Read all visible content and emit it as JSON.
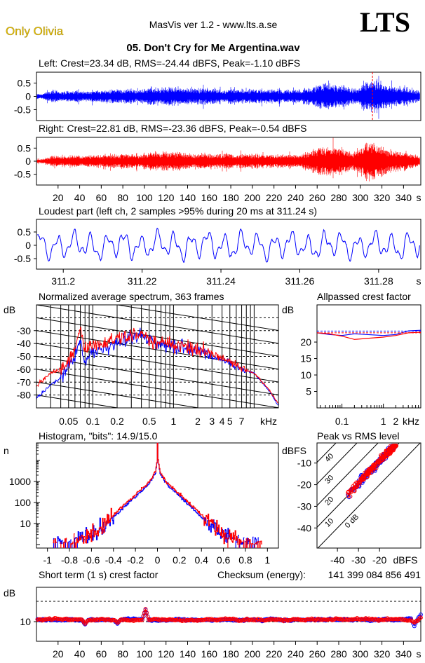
{
  "header": {
    "brand": "Only Olivia",
    "app_title": "MasVis ver 1.2 - www.lts.a.se",
    "logo": "LTS",
    "file_title": "05. Don't Cry for Me Argentina.wav"
  },
  "colors": {
    "left": "#0000ff",
    "right": "#ff0000",
    "brand": "#e8c000"
  },
  "chart_data": [
    {
      "id": "left_wave",
      "type": "area",
      "title": "Left: Crest=23.34 dB, RMS=-24.44 dBFS, Peak=-1.10 dBFS",
      "ytick_labels": [
        "0.5",
        "0",
        "-0.5"
      ],
      "yticks": [
        0.5,
        0,
        -0.5
      ],
      "xlim": [
        0,
        356
      ],
      "ylim": [
        -0.91,
        0.91
      ],
      "envelope_per_10s": [
        0.1,
        0.25,
        0.2,
        0.25,
        0.2,
        0.25,
        0.25,
        0.3,
        0.3,
        0.25,
        0.4,
        0.35,
        0.4,
        0.35,
        0.3,
        0.35,
        0.3,
        0.3,
        0.3,
        0.28,
        0.3,
        0.28,
        0.3,
        0.25,
        0.3,
        0.4,
        0.55,
        0.5,
        0.45,
        0.3,
        0.6,
        0.7,
        0.45,
        0.4,
        0.35,
        0.2
      ],
      "marker_time_s": 311.24
    },
    {
      "id": "right_wave",
      "type": "area",
      "title": "Right: Crest=22.81 dB, RMS=-23.36 dBFS, Peak=-0.54 dBFS",
      "ytick_labels": [
        "0.5",
        "0",
        "-0.5"
      ],
      "yticks": [
        0.5,
        0,
        -0.5
      ],
      "xlim": [
        0,
        356
      ],
      "ylim": [
        -0.91,
        0.91
      ],
      "envelope_per_10s": [
        0.1,
        0.22,
        0.2,
        0.25,
        0.22,
        0.28,
        0.28,
        0.3,
        0.32,
        0.28,
        0.4,
        0.38,
        0.42,
        0.38,
        0.32,
        0.36,
        0.32,
        0.32,
        0.3,
        0.3,
        0.3,
        0.3,
        0.3,
        0.28,
        0.3,
        0.45,
        0.65,
        0.6,
        0.55,
        0.35,
        0.8,
        0.85,
        0.55,
        0.45,
        0.38,
        0.2
      ],
      "xticks": [
        20,
        40,
        60,
        80,
        100,
        120,
        140,
        160,
        180,
        200,
        220,
        240,
        260,
        280,
        300,
        320,
        340
      ],
      "xtick_labels": [
        "20",
        "40",
        "60",
        "80",
        "100",
        "120",
        "140",
        "160",
        "180",
        "200",
        "220",
        "240",
        "260",
        "280",
        "300",
        "320",
        "340"
      ],
      "xunit": "s"
    },
    {
      "id": "loudest",
      "type": "line",
      "title": "Loudest part (left  ch, 2 samples >95% during 20 ms at 311.24 s)",
      "xlim": [
        311.1932,
        311.2907
      ],
      "ylim": [
        -0.89,
        0.97
      ],
      "ytick_labels": [
        "0.5",
        "0",
        "-0.5"
      ],
      "yticks": [
        0.5,
        0,
        -0.5
      ],
      "xticks": [
        311.2,
        311.22,
        311.24,
        311.26,
        311.28
      ],
      "xtick_labels": [
        "311.2",
        "311.22",
        "311.24",
        "311.26",
        "311.28"
      ],
      "xunit": "s"
    },
    {
      "id": "spectrum",
      "type": "line",
      "title": "Normalized average spectrum, 363 frames",
      "ylabel": "dB",
      "xunit": "kHz",
      "xlim": [
        0.02,
        20
      ],
      "ylim": [
        -90,
        -10
      ],
      "yticks": [
        -30,
        -40,
        -50,
        -60,
        -70,
        -80
      ],
      "ytick_labels": [
        "-30",
        "-40",
        "-50",
        "-60",
        "-70",
        "-80"
      ],
      "xticks": [
        0.05,
        0.1,
        0.2,
        0.5,
        1,
        2,
        3,
        4,
        5,
        7
      ],
      "xtick_labels": [
        "0.05",
        "0.1",
        "0.2",
        "0.5",
        "1",
        "2",
        "3",
        "4",
        "5",
        "7"
      ],
      "freq_khz": [
        0.02,
        0.03,
        0.04,
        0.05,
        0.06,
        0.07,
        0.08,
        0.1,
        0.15,
        0.2,
        0.3,
        0.4,
        0.5,
        0.7,
        1,
        1.5,
        2,
        3,
        4,
        5,
        7,
        10,
        15,
        20
      ],
      "series": [
        {
          "name": "Left",
          "values": [
            -83,
            -72,
            -66,
            -58,
            -50,
            -38,
            -55,
            -45,
            -45,
            -40,
            -35,
            -33,
            -38,
            -40,
            -42,
            -44,
            -46,
            -50,
            -52,
            -55,
            -60,
            -63,
            -76,
            -88
          ]
        },
        {
          "name": "Right",
          "values": [
            -73,
            -63,
            -60,
            -52,
            -45,
            -28,
            -45,
            -40,
            -40,
            -36,
            -33,
            -32,
            -37,
            -40,
            -41,
            -43,
            -45,
            -48,
            -51,
            -55,
            -59,
            -63,
            -75,
            -87
          ]
        }
      ]
    },
    {
      "id": "allpassed",
      "type": "line",
      "title": "Allpassed crest factor",
      "ylabel": "dB",
      "xunit": "kHz",
      "xlim": [
        0.025,
        8
      ],
      "ylim": [
        0,
        31.3
      ],
      "yticks": [
        20,
        15,
        10,
        5
      ],
      "ytick_labels": [
        "20",
        "15",
        "10",
        "5"
      ],
      "xticks": [
        0.1,
        1,
        2
      ],
      "xtick_labels": [
        "0.1",
        "1",
        "2"
      ],
      "freq_khz": [
        0.025,
        0.05,
        0.1,
        0.2,
        0.5,
        1,
        2,
        4,
        8
      ],
      "series": [
        {
          "name": "Left",
          "values": [
            22.8,
            22.3,
            22.0,
            22.5,
            22.2,
            22.0,
            22.3,
            23.4,
            23.6
          ],
          "reference": 23.34
        },
        {
          "name": "Right",
          "values": [
            22.8,
            22.5,
            21.8,
            20.8,
            21.2,
            21.5,
            22.0,
            22.8,
            23.0
          ],
          "reference": 22.81
        }
      ]
    },
    {
      "id": "histogram",
      "type": "line",
      "title": "Histogram, \"bits\": 14.9/15.0",
      "ylabel": "n",
      "xlim": [
        -1.1,
        1.1
      ],
      "ylim": [
        0.68,
        68000
      ],
      "yticks": [
        1000,
        100,
        10
      ],
      "ytick_labels": [
        "1000",
        "100",
        "10"
      ],
      "xticks": [
        -1,
        -0.8,
        -0.6,
        -0.4,
        -0.2,
        0,
        0.2,
        0.4,
        0.6,
        0.8,
        1
      ],
      "xtick_labels": [
        "-1",
        "-0.8",
        "-0.6",
        "-0.4",
        "-0.2",
        "0",
        "0.2",
        "0.4",
        "0.6",
        "0.8",
        "1"
      ],
      "abs_x": [
        0,
        0.02,
        0.05,
        0.1,
        0.2,
        0.3,
        0.4,
        0.5,
        0.6,
        0.7,
        0.8
      ],
      "series": [
        {
          "name": "Left",
          "counts": [
            15000,
            2600,
            1300,
            600,
            200,
            65,
            20,
            7,
            3,
            1.5,
            1
          ]
        },
        {
          "name": "Right",
          "counts": [
            15000,
            3000,
            1500,
            700,
            250,
            80,
            25,
            8,
            3,
            1.5,
            1
          ]
        }
      ]
    },
    {
      "id": "peak_vs_rms",
      "type": "scatter",
      "title": "Peak vs RMS level",
      "ylabel": "dBFS",
      "xunit": "dBFS",
      "xlim": [
        -49.7,
        -0.4
      ],
      "ylim": [
        -49.3,
        -0.7
      ],
      "yticks": [
        -10,
        -20,
        -30,
        -40
      ],
      "ytick_labels": [
        "-10",
        "-20",
        "-30",
        "-40"
      ],
      "xticks": [
        -40,
        -30,
        -20
      ],
      "xtick_labels": [
        "-40",
        "-30",
        "-20"
      ],
      "crest_lines_db": [
        0,
        10,
        20,
        30,
        40
      ],
      "crest_line_labels": [
        "0 dB",
        "10",
        "20",
        "30",
        "40"
      ],
      "rms_range_dbfs": [
        -36,
        -12
      ],
      "typical_crest_db": 11
    },
    {
      "id": "short_term_crest",
      "type": "scatter",
      "title": "Short term (1 s) crest factor",
      "checksum_label": "Checksum (energy):",
      "checksum_value": "141 399 084 856 491",
      "ylabel": "dB",
      "xunit": "s",
      "xlim": [
        0,
        356
      ],
      "ylim": [
        0.35,
        26.9
      ],
      "yticks": [
        10
      ],
      "ytick_labels": [
        "10"
      ],
      "reference_lines": [
        10,
        20
      ],
      "xticks": [
        20,
        40,
        60,
        80,
        100,
        120,
        140,
        160,
        180,
        200,
        220,
        240,
        260,
        280,
        300,
        320,
        340
      ],
      "xtick_labels": [
        "20",
        "40",
        "60",
        "80",
        "100",
        "120",
        "140",
        "160",
        "180",
        "200",
        "220",
        "240",
        "260",
        "280",
        "300",
        "320",
        "340"
      ],
      "mean_db": 11,
      "events": [
        {
          "t": 45,
          "left": 8.7,
          "right": 9.0
        },
        {
          "t": 75,
          "left": 9.0,
          "right": 9.4
        },
        {
          "t": 101,
          "left": 15.8,
          "right": 16.2
        },
        {
          "t": 350,
          "left": 7.8,
          "right": 9.5
        },
        {
          "t": 356,
          "left": 13.5,
          "right": 12.0
        }
      ]
    }
  ]
}
